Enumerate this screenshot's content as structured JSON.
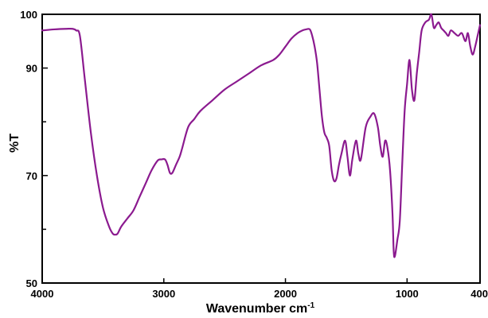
{
  "chart_data": {
    "type": "line",
    "xlabel": "Wavenumber cm",
    "xlabel_superscript": "-1",
    "ylabel": "%T",
    "xlim": [
      4000,
      400
    ],
    "ylim": [
      50,
      100
    ],
    "x_reversed": true,
    "x_ticks": [
      4000,
      3000,
      2000,
      1000,
      400
    ],
    "x_tick_labels": [
      "4000",
      "3000",
      "2000",
      "1000",
      "400"
    ],
    "y_ticks": [
      50,
      70,
      90,
      100
    ],
    "y_tick_labels": [
      "50",
      "70",
      "90",
      "100"
    ],
    "y_minor_ticks": [
      60,
      80
    ],
    "grid": false,
    "line_color": "#8b1a8f",
    "series": [
      {
        "x": [
          4000,
          3900,
          3800,
          3750,
          3720,
          3690,
          3650,
          3600,
          3550,
          3500,
          3450,
          3420,
          3400,
          3380,
          3350,
          3300,
          3250,
          3200,
          3150,
          3100,
          3050,
          3020,
          2990,
          2970,
          2950,
          2930,
          2900,
          2870,
          2850,
          2800,
          2750,
          2700,
          2600,
          2500,
          2400,
          2300,
          2200,
          2100,
          2050,
          2000,
          1950,
          1900,
          1860,
          1830,
          1800,
          1780,
          1760,
          1740,
          1720,
          1700,
          1680,
          1660,
          1640,
          1620,
          1600,
          1580,
          1560,
          1540,
          1510,
          1490,
          1470,
          1450,
          1420,
          1400,
          1380,
          1340,
          1300,
          1270,
          1240,
          1220,
          1200,
          1180,
          1160,
          1140,
          1120,
          1110,
          1100,
          1080,
          1060,
          1040,
          1020,
          1000,
          980,
          960,
          940,
          920,
          900,
          880,
          850,
          820,
          800,
          780,
          760,
          740,
          720,
          700,
          680,
          660,
          640,
          610,
          580,
          550,
          520,
          500,
          480,
          460,
          440,
          420,
          400
        ],
        "y": [
          97,
          97.2,
          97.3,
          97.3,
          97,
          96,
          88,
          78,
          70,
          64,
          60.5,
          59.2,
          59,
          59.2,
          60.5,
          62,
          63.5,
          66,
          68.5,
          71,
          72.8,
          73,
          73,
          72,
          70.5,
          70.5,
          72,
          73.5,
          75,
          79,
          80.5,
          82,
          84,
          86,
          87.5,
          89,
          90.5,
          91.5,
          92.5,
          94,
          95.5,
          96.5,
          97,
          97.2,
          97.2,
          96,
          94,
          91,
          86,
          81,
          78,
          77,
          75.5,
          71,
          69,
          69.5,
          72,
          74,
          76.5,
          73.5,
          70,
          73,
          76.5,
          74,
          73,
          79,
          81,
          81.5,
          79,
          75.5,
          73.5,
          76.5,
          75,
          71,
          63,
          56,
          55,
          58,
          61.5,
          72,
          82,
          87,
          91.5,
          86,
          84,
          89,
          93,
          97,
          98.5,
          99,
          100,
          97.5,
          98,
          98.5,
          97.5,
          97,
          96.5,
          96,
          97,
          96.5,
          96,
          96.5,
          95,
          96.5,
          94,
          92.5,
          94,
          96,
          98
        ]
      }
    ]
  }
}
